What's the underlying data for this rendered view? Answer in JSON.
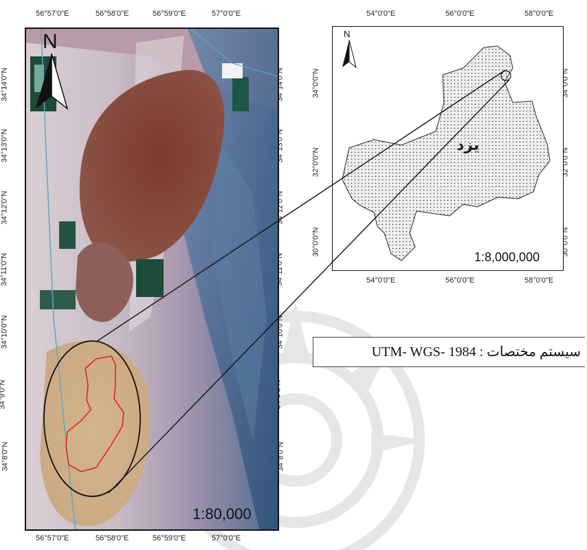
{
  "main_map": {
    "scale_text": "1:80,000",
    "north_label": "N",
    "x_ticks_top": [
      "56°57'0\"E",
      "56°58'0\"E",
      "56°59'0\"E",
      "57°0'0\"E"
    ],
    "x_ticks_bottom": [
      "56°57'0\"E",
      "56°58'0\"E",
      "56°59'0\"E",
      "57°0'0\"E"
    ],
    "y_ticks_left": [
      "34°14'0\"N",
      "34°13'0\"N",
      "34°12'0\"N",
      "34°11'0\"N",
      "34°10'0\"N",
      "34°9'0\"N",
      "34°8'0\"N"
    ],
    "y_ticks_right": [
      "34°14'0\"N",
      "34°13'0\"N",
      "34°12'0\"N",
      "34°11'0\"N",
      "34°10'0\"N",
      "34°9'0\"N",
      "34°8'0\"N"
    ],
    "study_area_color": "#e0261f"
  },
  "inset_map": {
    "scale_text": "1:8,000,000",
    "north_label": "N",
    "province_label": "یزد",
    "x_ticks": [
      "54°0'0\"E",
      "56°0'0\"E",
      "58°0'0\"E"
    ],
    "y_ticks_left": [
      "34°0'0\"N",
      "32°0'0\"N",
      "30°0'0\"N"
    ],
    "y_ticks_right": [
      "34°0'0\"N",
      "32°0'0\"N",
      "30°0'0\"N"
    ]
  },
  "coordinate_system": {
    "label": "سیستم مختصات :",
    "value": "UTM- WGS- 1984"
  }
}
